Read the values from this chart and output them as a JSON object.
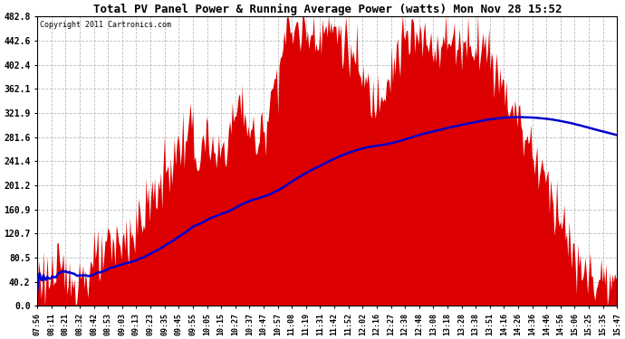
{
  "title": "Total PV Panel Power & Running Average Power (watts) Mon Nov 28 15:52",
  "copyright": "Copyright 2011 Cartronics.com",
  "yticks": [
    0.0,
    40.2,
    80.5,
    120.7,
    160.9,
    201.2,
    241.4,
    281.6,
    321.9,
    362.1,
    402.4,
    442.6,
    482.8
  ],
  "ymax": 482.8,
  "ymin": 0.0,
  "background_color": "#ffffff",
  "plot_bg_color": "#ffffff",
  "bar_color": "#dd0000",
  "avg_line_color": "#0000cc",
  "grid_color": "#bbbbbb",
  "xtick_labels": [
    "07:56",
    "08:11",
    "08:21",
    "08:32",
    "08:42",
    "08:53",
    "09:03",
    "09:13",
    "09:23",
    "09:35",
    "09:45",
    "09:55",
    "10:05",
    "10:15",
    "10:27",
    "10:37",
    "10:47",
    "10:57",
    "11:08",
    "11:19",
    "11:31",
    "11:42",
    "11:52",
    "12:02",
    "12:16",
    "12:27",
    "12:38",
    "12:48",
    "13:08",
    "13:18",
    "13:28",
    "13:38",
    "13:51",
    "14:16",
    "14:26",
    "14:36",
    "14:46",
    "14:56",
    "15:06",
    "15:25",
    "15:35",
    "15:47"
  ],
  "figsize": [
    6.9,
    3.75
  ],
  "dpi": 100
}
